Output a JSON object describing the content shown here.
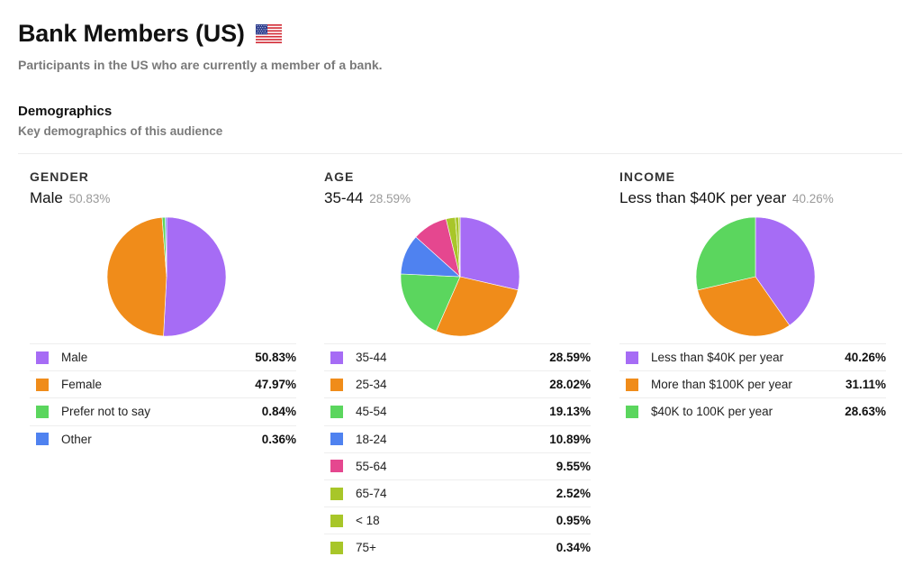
{
  "page": {
    "title": "Bank Members (US)",
    "subtitle": "Participants in the US who are currently a member of a bank.",
    "flag_icon": "us-flag-icon"
  },
  "section": {
    "title": "Demographics",
    "subtitle": "Key demographics of this audience"
  },
  "colors": {
    "purple": "#a66cf5",
    "orange": "#f08c1a",
    "green": "#5bd65e",
    "blue": "#4f82f0",
    "pink": "#e5478f",
    "olive": "#a8c629"
  },
  "chart_data": [
    {
      "type": "pie",
      "title": "GENDER",
      "top": {
        "label": "Male",
        "value": "50.83%"
      },
      "slices": [
        {
          "label": "Male",
          "value": 50.83,
          "display": "50.83%",
          "color": "#a66cf5"
        },
        {
          "label": "Female",
          "value": 47.97,
          "display": "47.97%",
          "color": "#f08c1a"
        },
        {
          "label": "Prefer not to say",
          "value": 0.84,
          "display": "0.84%",
          "color": "#5bd65e"
        },
        {
          "label": "Other",
          "value": 0.36,
          "display": "0.36%",
          "color": "#4f82f0"
        }
      ]
    },
    {
      "type": "pie",
      "title": "AGE",
      "top": {
        "label": "35-44",
        "value": "28.59%"
      },
      "slices": [
        {
          "label": "35-44",
          "value": 28.59,
          "display": "28.59%",
          "color": "#a66cf5"
        },
        {
          "label": "25-34",
          "value": 28.02,
          "display": "28.02%",
          "color": "#f08c1a"
        },
        {
          "label": "45-54",
          "value": 19.13,
          "display": "19.13%",
          "color": "#5bd65e"
        },
        {
          "label": "18-24",
          "value": 10.89,
          "display": "10.89%",
          "color": "#4f82f0"
        },
        {
          "label": "55-64",
          "value": 9.55,
          "display": "9.55%",
          "color": "#e5478f"
        },
        {
          "label": "65-74",
          "value": 2.52,
          "display": "2.52%",
          "color": "#a8c629"
        },
        {
          "label": "< 18",
          "value": 0.95,
          "display": "0.95%",
          "color": "#a8c629"
        },
        {
          "label": "75+",
          "value": 0.34,
          "display": "0.34%",
          "color": "#a8c629"
        }
      ]
    },
    {
      "type": "pie",
      "title": "INCOME",
      "top": {
        "label": "Less than $40K per year",
        "value": "40.26%"
      },
      "slices": [
        {
          "label": "Less than $40K per year",
          "value": 40.26,
          "display": "40.26%",
          "color": "#a66cf5"
        },
        {
          "label": "More than $100K per year",
          "value": 31.11,
          "display": "31.11%",
          "color": "#f08c1a"
        },
        {
          "label": "$40K to 100K per year",
          "value": 28.63,
          "display": "28.63%",
          "color": "#5bd65e"
        }
      ]
    }
  ]
}
